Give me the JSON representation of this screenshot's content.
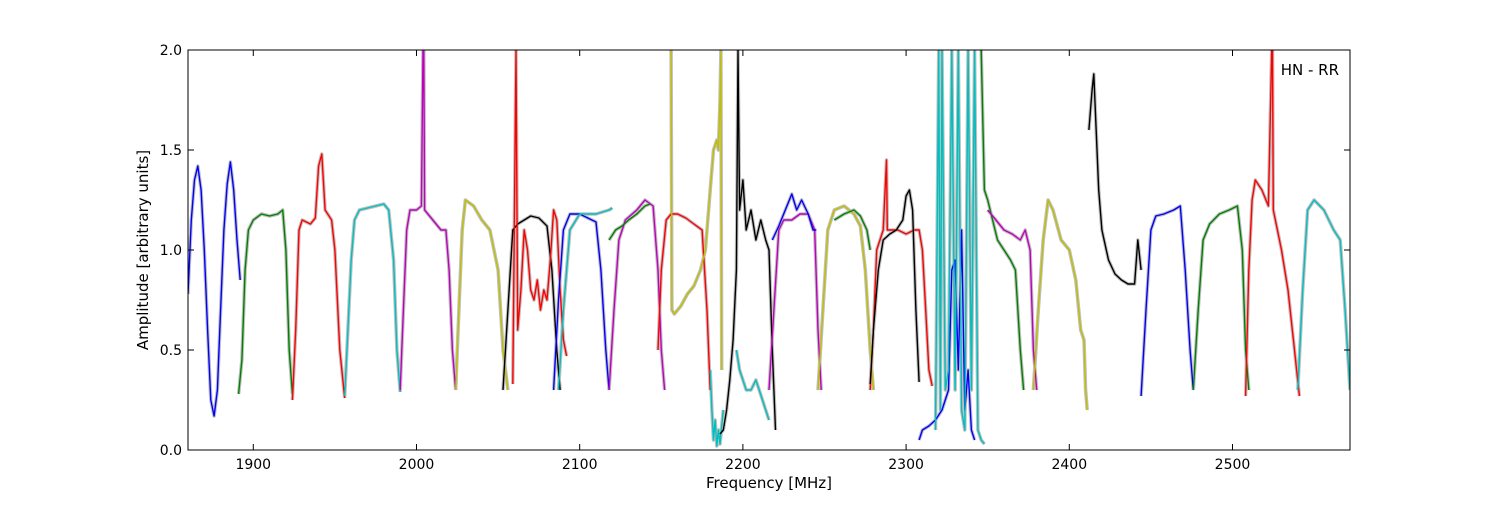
{
  "chart_data": {
    "type": "line",
    "title": "",
    "xlabel": "Frequency [MHz]",
    "ylabel": "Amplitude [arbitrary units]",
    "xlim": [
      1860,
      2572
    ],
    "ylim": [
      0.0,
      2.0
    ],
    "xticks": [
      1900,
      2000,
      2100,
      2200,
      2300,
      2400,
      2500
    ],
    "xtick_labels": [
      "1900",
      "2000",
      "2100",
      "2200",
      "2300",
      "2400",
      "2500"
    ],
    "yticks": [
      0.0,
      0.5,
      1.0,
      1.5,
      2.0
    ],
    "ytick_labels": [
      "0.0",
      "0.5",
      "1.0",
      "1.5",
      "2.0"
    ],
    "grid": false,
    "annotation": "HN - RR",
    "colors": {
      "background_trace": "#c0c0c0",
      "b": "#0000ff",
      "g": "#008000",
      "r": "#ff0000",
      "c": "#00bfbf",
      "m": "#bf00bf",
      "y": "#bfbf00",
      "k": "#000000"
    },
    "series": [
      {
        "color": "b",
        "x": [
          1860,
          1862,
          1864,
          1866,
          1868,
          1870,
          1872,
          1874,
          1876,
          1878,
          1880,
          1882,
          1884,
          1886,
          1888,
          1890,
          1892
        ],
        "y": [
          0.78,
          1.15,
          1.35,
          1.42,
          1.3,
          1.0,
          0.6,
          0.25,
          0.17,
          0.3,
          0.7,
          1.1,
          1.33,
          1.44,
          1.3,
          1.05,
          0.85
        ]
      },
      {
        "color": "g",
        "x": [
          1891,
          1893,
          1895,
          1897,
          1900,
          1905,
          1910,
          1915,
          1918,
          1920,
          1922,
          1924
        ],
        "y": [
          0.28,
          0.45,
          0.9,
          1.1,
          1.15,
          1.18,
          1.17,
          1.18,
          1.2,
          1.0,
          0.5,
          0.28
        ]
      },
      {
        "color": "r",
        "x": [
          1924,
          1926,
          1928,
          1930,
          1935,
          1938,
          1940,
          1942,
          1944,
          1948,
          1950,
          1953,
          1956
        ],
        "y": [
          0.25,
          0.6,
          1.1,
          1.15,
          1.13,
          1.16,
          1.42,
          1.48,
          1.2,
          1.15,
          1.0,
          0.5,
          0.26
        ]
      },
      {
        "color": "c",
        "x": [
          1956,
          1958,
          1960,
          1962,
          1965,
          1970,
          1975,
          1980,
          1983,
          1986,
          1988,
          1990
        ],
        "y": [
          0.27,
          0.6,
          0.95,
          1.15,
          1.2,
          1.21,
          1.22,
          1.23,
          1.2,
          0.95,
          0.5,
          0.29
        ]
      },
      {
        "color": "m",
        "x": [
          1990,
          1992,
          1994,
          1996,
          2000,
          2003,
          2004,
          2004.5,
          2005,
          2010,
          2015,
          2018,
          2020,
          2022,
          2024
        ],
        "y": [
          0.3,
          0.7,
          1.1,
          1.2,
          1.2,
          1.22,
          2.0,
          2.0,
          1.2,
          1.15,
          1.1,
          1.1,
          0.9,
          0.5,
          0.3
        ]
      },
      {
        "color": "y",
        "x": [
          2024,
          2026,
          2028,
          2030,
          2035,
          2040,
          2045,
          2050,
          2053,
          2056
        ],
        "y": [
          0.3,
          0.7,
          1.1,
          1.25,
          1.22,
          1.15,
          1.1,
          0.9,
          0.5,
          0.3
        ]
      },
      {
        "color": "k",
        "x": [
          2053,
          2056,
          2059,
          2062,
          2066,
          2070,
          2075,
          2080,
          2083,
          2086,
          2088
        ],
        "y": [
          0.3,
          0.7,
          1.1,
          1.13,
          1.15,
          1.17,
          1.16,
          1.12,
          0.9,
          0.5,
          0.3
        ]
      },
      {
        "color": "r",
        "x": [
          2059,
          2061,
          2062,
          2064,
          2066,
          2068,
          2070,
          2072,
          2074,
          2076,
          2078,
          2080,
          2082,
          2084,
          2086,
          2088,
          2090,
          2092
        ],
        "y": [
          0.33,
          2.0,
          0.6,
          0.8,
          1.1,
          1.0,
          0.8,
          0.75,
          0.85,
          0.7,
          0.8,
          0.75,
          0.95,
          1.2,
          1.15,
          0.8,
          0.55,
          0.47
        ]
      },
      {
        "color": "b",
        "x": [
          2084,
          2087,
          2090,
          2094,
          2100,
          2105,
          2110,
          2113,
          2116,
          2118
        ],
        "y": [
          0.3,
          0.75,
          1.1,
          1.18,
          1.18,
          1.16,
          1.14,
          0.9,
          0.5,
          0.3
        ]
      },
      {
        "color": "c",
        "x": [
          2087,
          2090,
          2094,
          2100,
          2110,
          2118,
          2120
        ],
        "y": [
          0.3,
          0.7,
          1.1,
          1.18,
          1.18,
          1.2,
          1.21
        ]
      },
      {
        "color": "m",
        "x": [
          2118,
          2121,
          2124,
          2128,
          2135,
          2140,
          2145,
          2148,
          2150,
          2152
        ],
        "y": [
          0.3,
          0.7,
          1.05,
          1.15,
          1.2,
          1.25,
          1.22,
          0.9,
          0.5,
          0.3
        ]
      },
      {
        "color": "g",
        "x": [
          2118,
          2122,
          2126,
          2130,
          2135,
          2140,
          2143
        ],
        "y": [
          1.05,
          1.1,
          1.12,
          1.15,
          1.18,
          1.22,
          1.23
        ]
      },
      {
        "color": "r",
        "x": [
          2148,
          2150,
          2153,
          2156,
          2160,
          2165,
          2170,
          2175,
          2178,
          2180
        ],
        "y": [
          0.5,
          0.9,
          1.15,
          1.18,
          1.18,
          1.16,
          1.13,
          1.1,
          0.7,
          0.3
        ]
      },
      {
        "color": "y",
        "x": [
          2156,
          2156.5,
          2158,
          2162,
          2166,
          2170,
          2174,
          2177,
          2180,
          2182,
          2184,
          2185,
          2186,
          2186.5,
          2187
        ],
        "y": [
          2.0,
          0.7,
          0.68,
          0.72,
          0.78,
          0.82,
          0.9,
          1.0,
          1.3,
          1.5,
          1.55,
          1.5,
          1.75,
          2.0,
          0.4
        ]
      },
      {
        "color": "c",
        "x": [
          2180,
          2181,
          2182,
          2183,
          2184,
          2185,
          2186,
          2188
        ],
        "y": [
          0.4,
          0.2,
          0.05,
          0.15,
          0.02,
          0.1,
          0.03,
          0.2
        ]
      },
      {
        "color": "k",
        "x": [
          2186,
          2188,
          2190,
          2192,
          2194,
          2196,
          2197,
          2198,
          2200,
          2202,
          2205,
          2208,
          2211,
          2214,
          2216,
          2218,
          2220
        ],
        "y": [
          0.08,
          0.1,
          0.2,
          0.35,
          0.55,
          0.9,
          2.0,
          1.2,
          1.35,
          1.1,
          1.2,
          1.05,
          1.15,
          1.05,
          1.0,
          0.5,
          0.1
        ]
      },
      {
        "color": "c",
        "x": [
          2196,
          2198,
          2200,
          2202,
          2205,
          2208,
          2212,
          2214,
          2216
        ],
        "y": [
          0.5,
          0.4,
          0.35,
          0.3,
          0.3,
          0.35,
          0.25,
          0.2,
          0.15
        ]
      },
      {
        "color": "m",
        "x": [
          2216,
          2219,
          2222,
          2225,
          2230,
          2235,
          2240,
          2244,
          2246,
          2248
        ],
        "y": [
          0.3,
          0.7,
          1.1,
          1.15,
          1.15,
          1.18,
          1.18,
          1.1,
          0.6,
          0.3
        ]
      },
      {
        "color": "b",
        "x": [
          2218,
          2222,
          2226,
          2230,
          2233,
          2236,
          2240,
          2243,
          2245
        ],
        "y": [
          1.05,
          1.12,
          1.2,
          1.28,
          1.2,
          1.25,
          1.18,
          1.1,
          1.1
        ]
      },
      {
        "color": "y",
        "x": [
          2246,
          2249,
          2252,
          2256,
          2262,
          2268,
          2272,
          2275,
          2278,
          2280
        ],
        "y": [
          0.3,
          0.7,
          1.1,
          1.2,
          1.22,
          1.18,
          1.12,
          0.9,
          0.5,
          0.3
        ]
      },
      {
        "color": "g",
        "x": [
          2256,
          2262,
          2268,
          2272,
          2276,
          2278
        ],
        "y": [
          1.15,
          1.18,
          1.2,
          1.17,
          1.1,
          1.0
        ]
      },
      {
        "color": "r",
        "x": [
          2278,
          2280,
          2282,
          2286,
          2288,
          2288.5,
          2290,
          2295,
          2300,
          2305,
          2308,
          2310,
          2312,
          2314,
          2316
        ],
        "y": [
          0.3,
          0.6,
          1.0,
          1.1,
          1.45,
          1.1,
          1.1,
          1.1,
          1.08,
          1.1,
          1.1,
          1.0,
          0.7,
          0.4,
          0.32
        ]
      },
      {
        "color": "k",
        "x": [
          2278,
          2280,
          2283,
          2286,
          2290,
          2294,
          2298,
          2300,
          2302,
          2304,
          2306,
          2308
        ],
        "y": [
          0.33,
          0.6,
          0.9,
          1.05,
          1.08,
          1.1,
          1.15,
          1.27,
          1.3,
          1.2,
          0.7,
          0.34
        ]
      },
      {
        "color": "b",
        "x": [
          2308,
          2310,
          2314,
          2318,
          2322,
          2326,
          2328,
          2330,
          2332,
          2334,
          2336,
          2338,
          2340,
          2342
        ],
        "y": [
          0.05,
          0.1,
          0.12,
          0.15,
          0.2,
          0.3,
          0.9,
          0.95,
          0.4,
          1.1,
          0.2,
          0.4,
          0.1,
          0.05
        ]
      },
      {
        "color": "c",
        "x": [
          2318,
          2320,
          2321,
          2322,
          2324,
          2326,
          2328,
          2330,
          2332,
          2334,
          2336,
          2338,
          2340,
          2342,
          2344,
          2346,
          2348
        ],
        "y": [
          0.1,
          2.0,
          0.2,
          2.0,
          0.3,
          0.4,
          2.0,
          0.3,
          2.0,
          0.2,
          0.1,
          2.0,
          0.3,
          2.0,
          0.1,
          0.05,
          0.03
        ]
      },
      {
        "color": "g",
        "x": [
          2346,
          2348,
          2350,
          2353,
          2356,
          2360,
          2364,
          2367,
          2370,
          2372
        ],
        "y": [
          2.0,
          1.3,
          1.25,
          1.15,
          1.05,
          1.0,
          0.95,
          0.9,
          0.5,
          0.3
        ]
      },
      {
        "color": "m",
        "x": [
          2350,
          2355,
          2360,
          2365,
          2370,
          2373,
          2376,
          2378,
          2380
        ],
        "y": [
          1.2,
          1.15,
          1.1,
          1.08,
          1.05,
          1.1,
          1.0,
          0.5,
          0.3
        ]
      },
      {
        "color": "y",
        "x": [
          2378,
          2381,
          2384,
          2387,
          2390,
          2395,
          2400,
          2404,
          2407,
          2409,
          2410,
          2411
        ],
        "y": [
          0.3,
          0.7,
          1.05,
          1.25,
          1.2,
          1.05,
          1.0,
          0.85,
          0.6,
          0.55,
          0.3,
          0.2
        ]
      },
      {
        "color": "k",
        "x": [
          2412,
          2414,
          2415,
          2418,
          2420,
          2424,
          2428,
          2432,
          2436,
          2440,
          2442,
          2444
        ],
        "y": [
          1.6,
          1.8,
          1.88,
          1.3,
          1.1,
          0.95,
          0.88,
          0.85,
          0.83,
          0.83,
          1.05,
          0.9
        ]
      },
      {
        "color": "b",
        "x": [
          2444,
          2447,
          2450,
          2453,
          2458,
          2464,
          2468,
          2471,
          2474,
          2476
        ],
        "y": [
          0.27,
          0.7,
          1.1,
          1.17,
          1.18,
          1.2,
          1.22,
          0.9,
          0.5,
          0.3
        ]
      },
      {
        "color": "g",
        "x": [
          2476,
          2479,
          2482,
          2486,
          2492,
          2498,
          2503,
          2506,
          2508,
          2510
        ],
        "y": [
          0.3,
          0.7,
          1.05,
          1.13,
          1.18,
          1.2,
          1.22,
          1.0,
          0.5,
          0.3
        ]
      },
      {
        "color": "r",
        "x": [
          2508,
          2510,
          2512,
          2514,
          2518,
          2522,
          2524,
          2524.5,
          2525,
          2530,
          2534,
          2538,
          2541
        ],
        "y": [
          0.27,
          0.9,
          1.25,
          1.35,
          1.3,
          1.22,
          2.0,
          2.0,
          1.2,
          1.0,
          0.8,
          0.5,
          0.27
        ]
      },
      {
        "color": "c",
        "x": [
          2540,
          2543,
          2546,
          2550,
          2556,
          2562,
          2566,
          2569,
          2572
        ],
        "y": [
          0.3,
          0.8,
          1.2,
          1.25,
          1.2,
          1.1,
          1.05,
          0.7,
          0.3
        ]
      }
    ]
  }
}
